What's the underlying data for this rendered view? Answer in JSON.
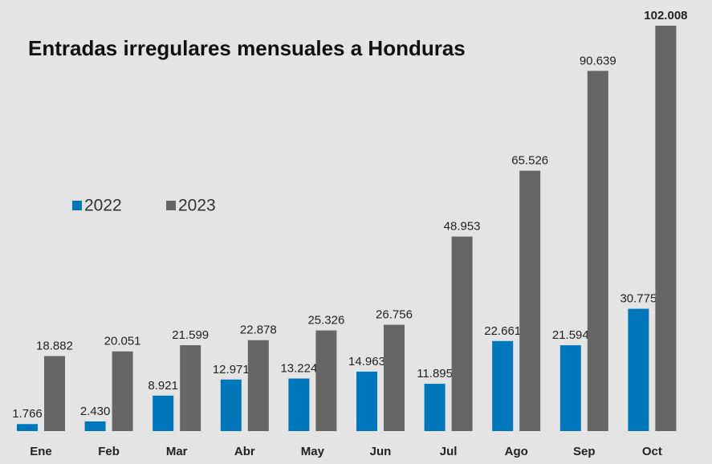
{
  "chart_data": {
    "type": "bar",
    "title": "Entradas irregulares mensuales a Honduras",
    "categories": [
      "Ene",
      "Feb",
      "Mar",
      "Abr",
      "May",
      "Jun",
      "Jul",
      "Ago",
      "Sep",
      "Oct"
    ],
    "series": [
      {
        "name": "2022",
        "color": "#0077bb",
        "values": [
          1766,
          2430,
          8921,
          12971,
          13224,
          14963,
          11895,
          22661,
          21594,
          30775
        ],
        "value_labels": [
          "1.766",
          "2.430",
          "8.921",
          "12.971",
          "13.224",
          "14.963",
          "11.895",
          "22.661",
          "21.594",
          "30.775"
        ]
      },
      {
        "name": "2023",
        "color": "#666666",
        "values": [
          18882,
          20051,
          21599,
          22878,
          25326,
          26756,
          48953,
          65526,
          90639,
          102008
        ],
        "value_labels": [
          "18.882",
          "20.051",
          "21.599",
          "22.878",
          "25.326",
          "26.756",
          "48.953",
          "65.526",
          "90.639",
          "102.008"
        ]
      }
    ],
    "legend": "left"
  }
}
